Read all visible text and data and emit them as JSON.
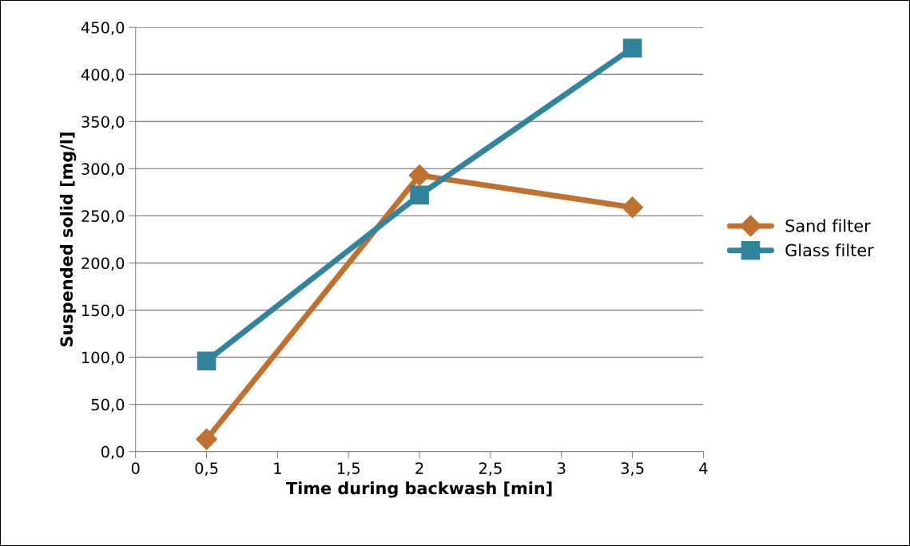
{
  "chart_data": {
    "type": "line",
    "xlabel": "Time during backwash [min]",
    "ylabel": "Suspended solid [mg/l]",
    "x": [
      0.5,
      2,
      3.5
    ],
    "series": [
      {
        "name": "Sand filter",
        "color": "#c0712f",
        "values": [
          13,
          293,
          259
        ],
        "marker": "diamond"
      },
      {
        "name": "Glass filter",
        "color": "#31849b",
        "values": [
          96,
          272,
          428
        ],
        "marker": "square"
      }
    ],
    "xlim": [
      0,
      4
    ],
    "xticks": [
      0,
      {
        "value": 0.5,
        "label": "0,5"
      },
      1,
      {
        "value": 1.5,
        "label": "1,5"
      },
      2,
      {
        "value": 2.5,
        "label": "2,5"
      },
      3,
      {
        "value": 3.5,
        "label": "3,5"
      },
      4
    ],
    "ylim": [
      0,
      450
    ],
    "yticks": [
      {
        "value": 0,
        "label": "0,0"
      },
      {
        "value": 50,
        "label": "50,0"
      },
      {
        "value": 100,
        "label": "100,0"
      },
      {
        "value": 150,
        "label": "150,0"
      },
      {
        "value": 200,
        "label": "200,0"
      },
      {
        "value": 250,
        "label": "250,0"
      },
      {
        "value": 300,
        "label": "300,0"
      },
      {
        "value": 350,
        "label": "350,0"
      },
      {
        "value": 400,
        "label": "400,0"
      },
      {
        "value": 450,
        "label": "450,0"
      }
    ],
    "grid": "y",
    "legend": "right",
    "line_style": "solid"
  }
}
